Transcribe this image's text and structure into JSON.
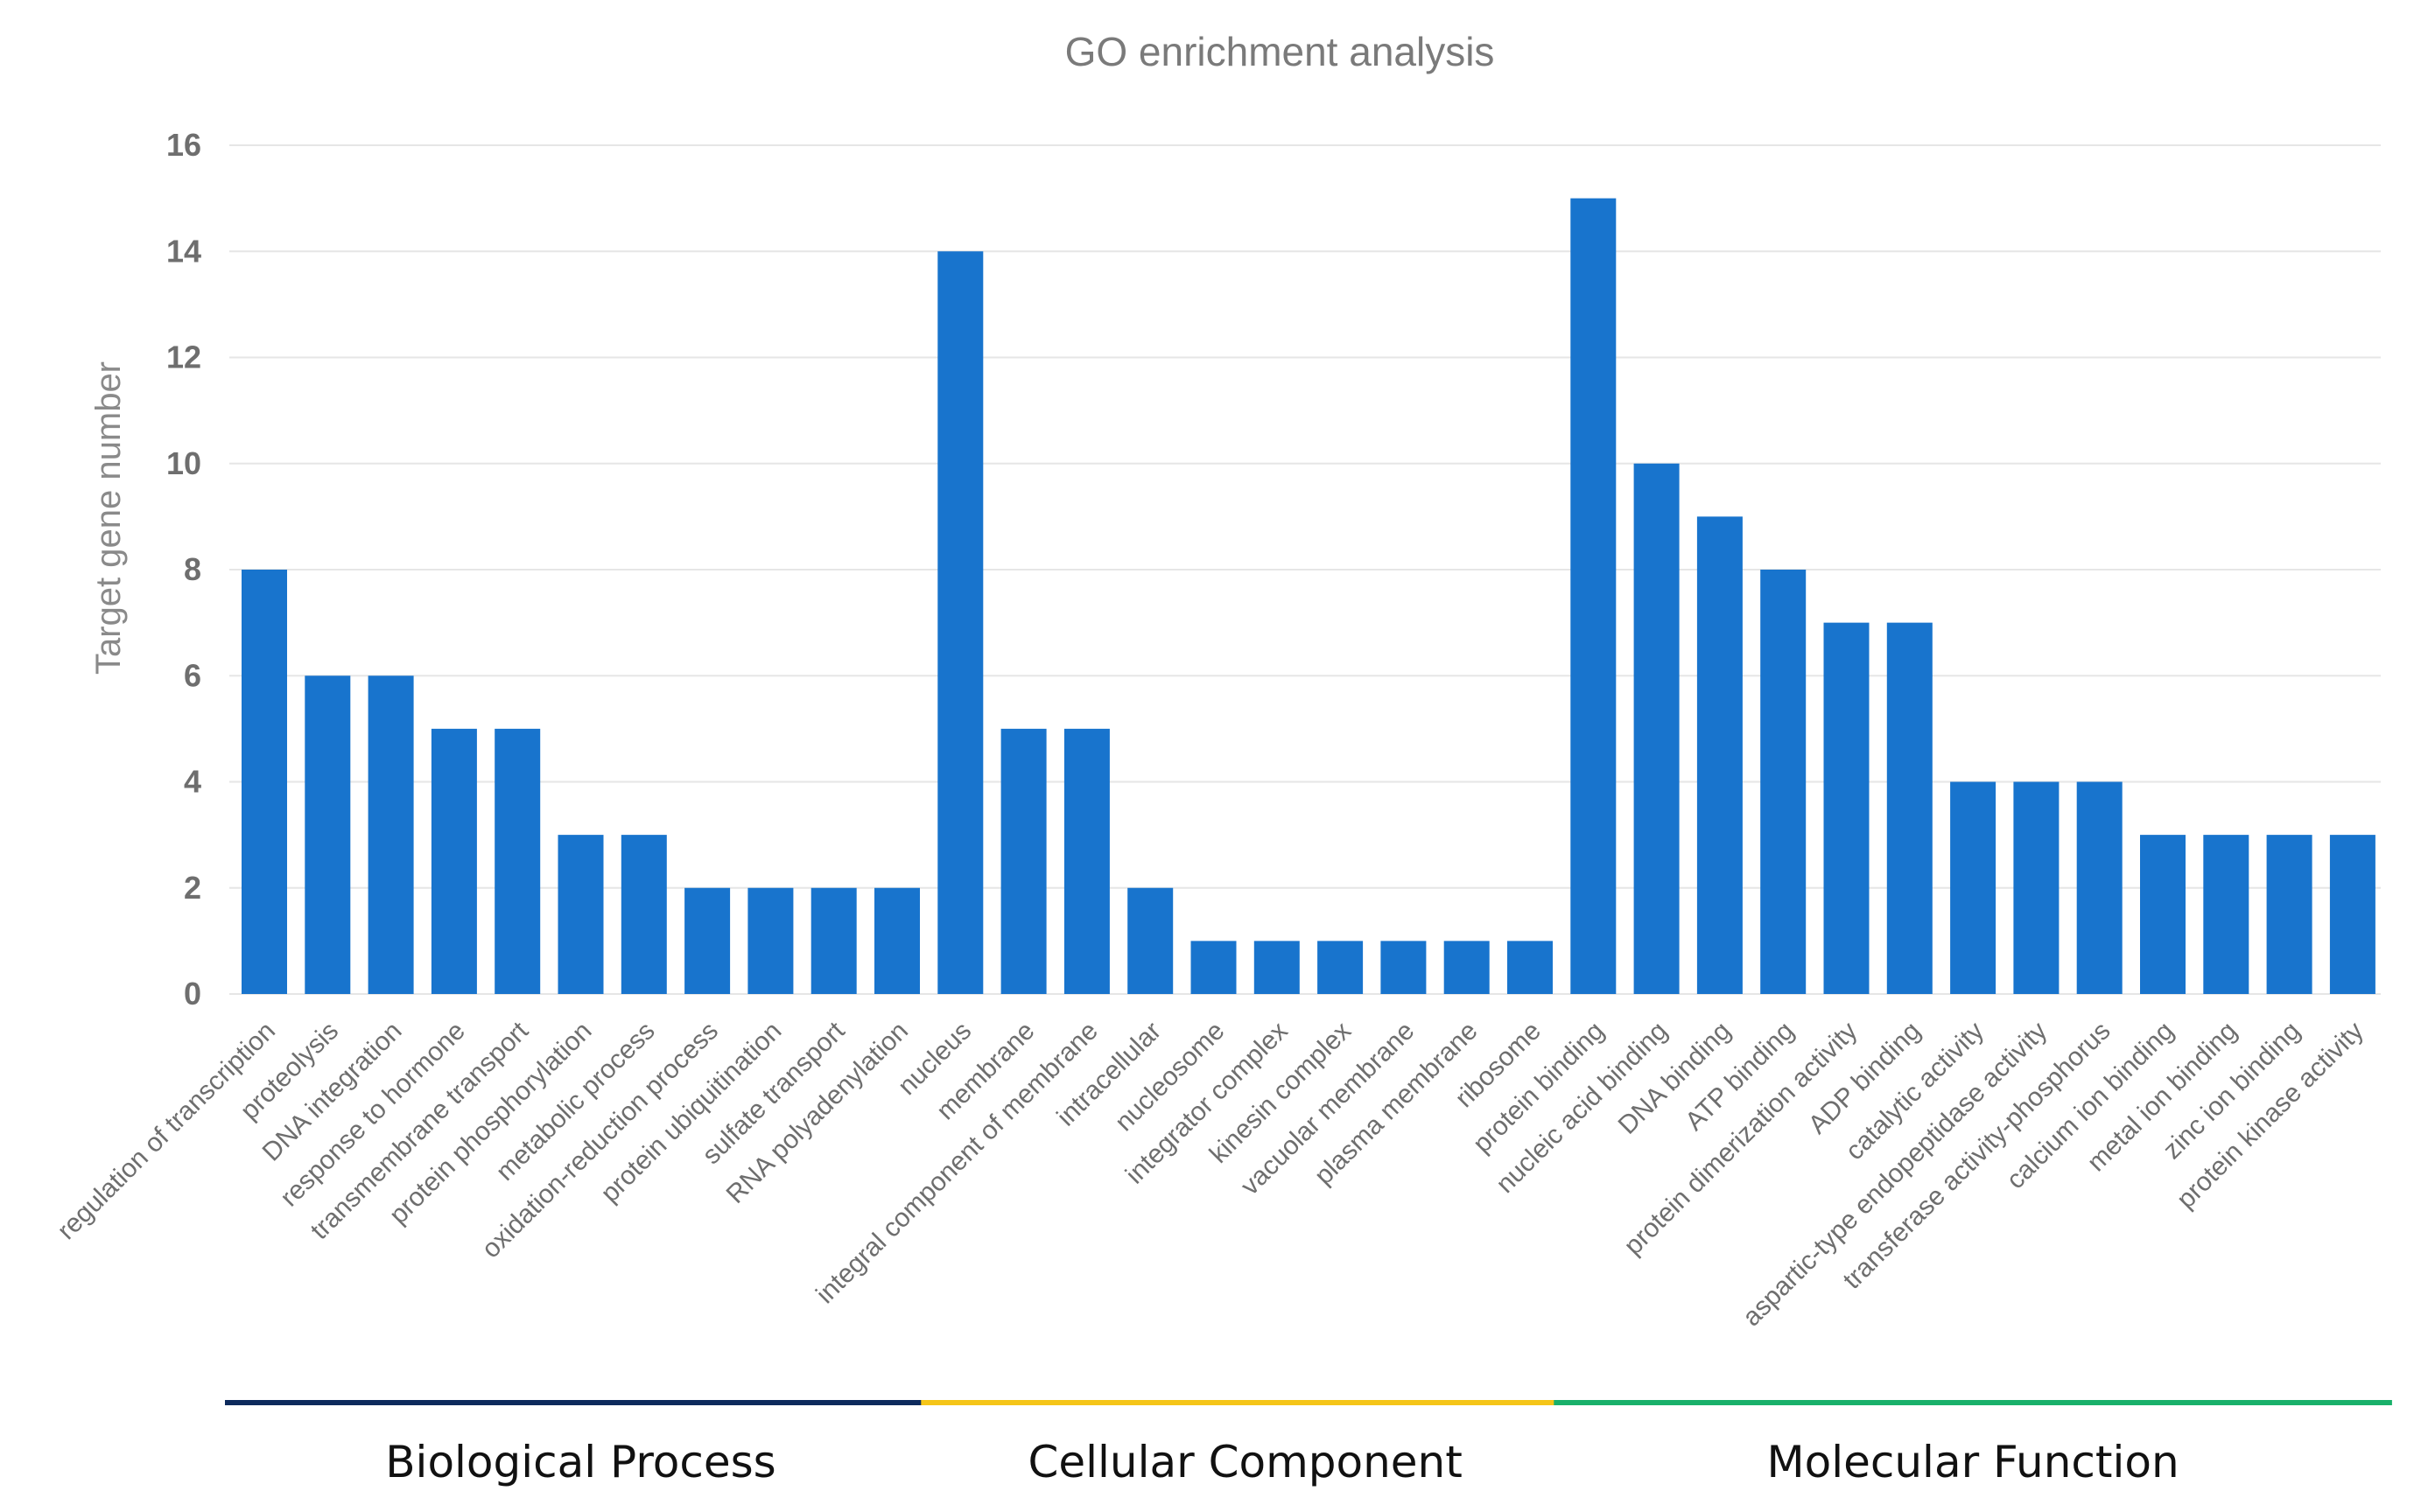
{
  "chart_data": {
    "type": "bar",
    "title": "GO enrichment analysis",
    "xlabel": "",
    "ylabel": "Target gene number",
    "ylim": [
      0,
      16
    ],
    "yticks": [
      0,
      2,
      4,
      6,
      8,
      10,
      12,
      14,
      16
    ],
    "grid": true,
    "bar_color": "#1874cd",
    "categories": [
      "regulation of transcription",
      "proteolysis",
      "DNA integration",
      "response to hormone",
      "transmembrane transport",
      "protein phosphorylation",
      "metabolic process",
      "oxidation-reduction process",
      "protein ubiquitination",
      "sulfate transport",
      "RNA polyadenylation",
      "nucleus",
      "membrane",
      "integral component of membrane",
      "intracellular",
      "nucleosome",
      "integrator complex",
      "kinesin complex",
      "vacuolar membrane",
      "plasma membrane",
      "ribosome",
      "protein binding",
      "nucleic acid binding",
      "DNA binding",
      "ATP binding",
      "protein dimerization activity",
      "ADP binding",
      "catalytic activity",
      "aspartic-type endopeptidase activity",
      "transferase activity-phosphorus",
      "calcium ion binding",
      "metal ion binding",
      "zinc ion binding",
      "protein kinase activity"
    ],
    "values": [
      8,
      6,
      6,
      5,
      5,
      3,
      3,
      2,
      2,
      2,
      2,
      14,
      5,
      5,
      2,
      1,
      1,
      1,
      1,
      1,
      1,
      15,
      10,
      9,
      8,
      7,
      7,
      4,
      4,
      4,
      3,
      3,
      3,
      3
    ],
    "groups": [
      {
        "name": "Biological Process",
        "start": 0,
        "end": 10,
        "color": "#0d2a5c"
      },
      {
        "name": "Cellular Component",
        "start": 11,
        "end": 20,
        "color": "#f5c518"
      },
      {
        "name": "Molecular Function",
        "start": 21,
        "end": 33,
        "color": "#19b06a"
      }
    ]
  }
}
